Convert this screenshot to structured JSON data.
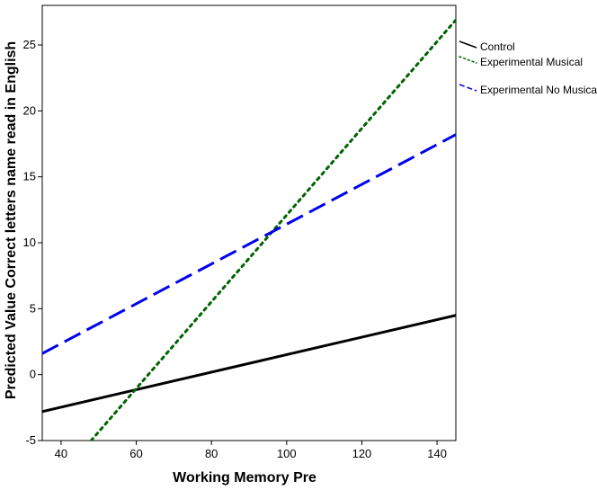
{
  "chart_data": {
    "type": "line",
    "xlabel": "Working Memory Pre",
    "ylabel": "Predicted Value Correct letters name read in English",
    "xlim": [
      35,
      145
    ],
    "ylim": [
      -5,
      28
    ],
    "x_ticks": [
      40,
      60,
      80,
      100,
      120,
      140
    ],
    "y_ticks": [
      -5,
      0,
      5,
      10,
      15,
      20,
      25
    ],
    "legend_position": "right",
    "series": [
      {
        "name": "Control",
        "color": "#000000",
        "style": "solid",
        "x": [
          35,
          145
        ],
        "y": [
          -2.8,
          4.5
        ]
      },
      {
        "name": "Experimental Musical",
        "color": "#006400",
        "style": "dotted",
        "x": [
          48,
          145
        ],
        "y": [
          -5,
          26.9
        ]
      },
      {
        "name": "Experimental No Musical",
        "color": "#0000ee",
        "style": "dashed",
        "x": [
          35,
          145
        ],
        "y": [
          1.6,
          18.2
        ]
      }
    ]
  }
}
